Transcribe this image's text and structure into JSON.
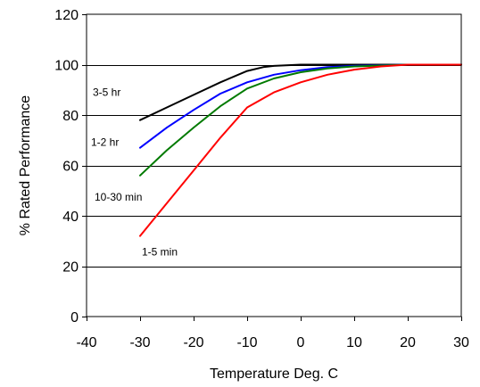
{
  "chart_data": {
    "type": "line",
    "title": "",
    "xlabel": "Temperature Deg. C",
    "ylabel": "% Rated Performance",
    "xlim": [
      -40,
      30
    ],
    "ylim": [
      0,
      120
    ],
    "x_ticks": [
      -40,
      -30,
      -20,
      -10,
      0,
      10,
      20,
      30
    ],
    "y_ticks": [
      0,
      20,
      40,
      60,
      80,
      100,
      120
    ],
    "grid": true,
    "series": [
      {
        "name": "3-5 hr",
        "color": "#000000",
        "x": [
          -30,
          -25,
          -20,
          -15,
          -10,
          -7,
          -5,
          0,
          5,
          10,
          20,
          30
        ],
        "y": [
          78,
          83,
          88,
          93,
          97.5,
          99,
          99.5,
          100,
          100,
          100,
          100,
          100
        ]
      },
      {
        "name": "1-2 hr",
        "color": "#0000ff",
        "x": [
          -30,
          -25,
          -20,
          -15,
          -10,
          -5,
          0,
          5,
          10,
          20,
          30
        ],
        "y": [
          67,
          75,
          82,
          88.5,
          93,
          96,
          97.8,
          99,
          99.5,
          100,
          100
        ]
      },
      {
        "name": "10-30 min",
        "color": "#007a00",
        "x": [
          -30,
          -25,
          -20,
          -15,
          -10,
          -5,
          0,
          5,
          10,
          20,
          30
        ],
        "y": [
          56,
          66,
          75,
          83.5,
          90.5,
          94.5,
          97,
          98.5,
          99.3,
          100,
          100
        ]
      },
      {
        "name": "1-5 min",
        "color": "#ff0000",
        "x": [
          -30,
          -25,
          -20,
          -15,
          -10,
          -5,
          0,
          5,
          10,
          15,
          20,
          30
        ],
        "y": [
          32,
          45,
          58,
          71,
          83,
          89,
          93,
          96,
          98,
          99.3,
          100,
          100
        ]
      }
    ]
  }
}
